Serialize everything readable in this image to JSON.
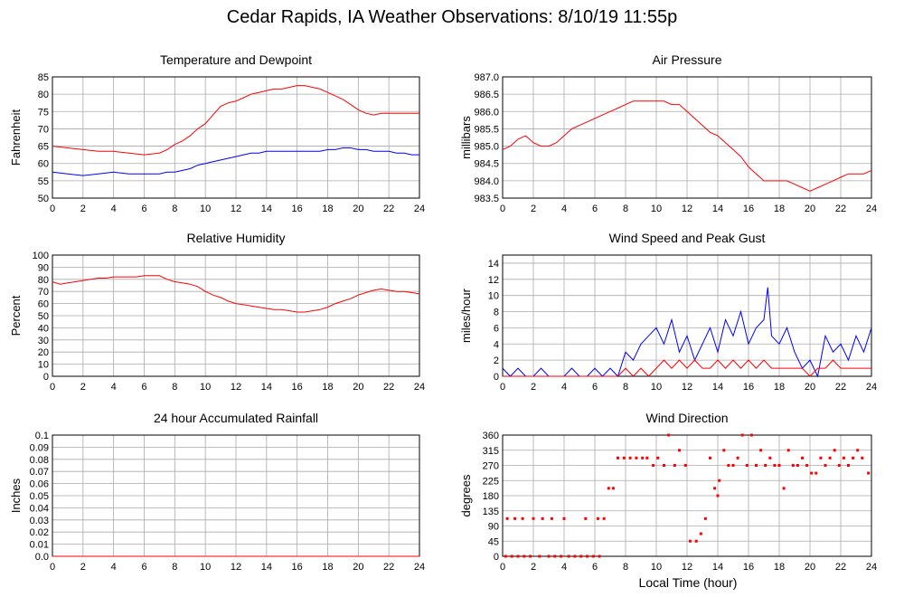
{
  "title": "Cedar Rapids, IA Weather Observations: 8/10/19 11:55p",
  "bottom_xlabel": "Local Time (hour)",
  "colors": {
    "red": "#ff0000",
    "blue": "#0000ff",
    "grid": "#aaaaaa"
  },
  "chart_data": [
    {
      "id": "temp",
      "type": "line",
      "title": "Temperature and Dewpoint",
      "ylabel": "Fahrenheit",
      "ylim": [
        50,
        85
      ],
      "yticks": [
        "50",
        "55",
        "60",
        "65",
        "70",
        "75",
        "80",
        "85"
      ],
      "xlim": [
        0,
        24
      ],
      "xticks": [
        "0",
        "2",
        "4",
        "6",
        "8",
        "10",
        "12",
        "14",
        "16",
        "18",
        "20",
        "22",
        "24"
      ],
      "series": [
        {
          "color": "#ff0000",
          "x": [
            0,
            1,
            2,
            3,
            4,
            5,
            6,
            7,
            7.5,
            8,
            8.5,
            9,
            9.5,
            10,
            10.5,
            11,
            11.5,
            12,
            12.5,
            13,
            13.5,
            14,
            14.5,
            15,
            15.5,
            16,
            16.5,
            17,
            17.5,
            18,
            18.5,
            19,
            19.5,
            20,
            20.5,
            21,
            21.5,
            22,
            22.5,
            23,
            23.5,
            24
          ],
          "y": [
            65,
            64.5,
            64,
            63.5,
            63.5,
            63,
            62.5,
            63,
            64,
            65.5,
            66.5,
            68,
            70,
            71.5,
            74,
            76.5,
            77.5,
            78,
            79,
            80,
            80.5,
            81,
            81.5,
            81.5,
            82,
            82.5,
            82.5,
            82,
            81.5,
            80.5,
            79.5,
            78.5,
            77,
            75.5,
            74.5,
            74,
            74.5,
            74.5,
            74.5,
            74.5,
            74.5,
            74.5
          ]
        },
        {
          "color": "#0000ff",
          "x": [
            0,
            1,
            2,
            3,
            4,
            5,
            6,
            7,
            7.5,
            8,
            8.5,
            9,
            9.5,
            10,
            10.5,
            11,
            11.5,
            12,
            12.5,
            13,
            13.5,
            14,
            14.5,
            15,
            15.5,
            16,
            16.5,
            17,
            17.5,
            18,
            18.5,
            19,
            19.5,
            20,
            20.5,
            21,
            21.5,
            22,
            22.5,
            23,
            23.5,
            24
          ],
          "y": [
            57.5,
            57,
            56.5,
            57,
            57.5,
            57,
            57,
            57,
            57.5,
            57.5,
            58,
            58.5,
            59.5,
            60,
            60.5,
            61,
            61.5,
            62,
            62.5,
            63,
            63,
            63.5,
            63.5,
            63.5,
            63.5,
            63.5,
            63.5,
            63.5,
            63.5,
            64,
            64,
            64.5,
            64.5,
            64,
            64,
            63.5,
            63.5,
            63.5,
            63,
            63,
            62.5,
            62.5
          ]
        }
      ]
    },
    {
      "id": "pressure",
      "type": "line",
      "title": "Air Pressure",
      "ylabel": "millibars",
      "ylim": [
        983.5,
        987.0
      ],
      "yticks": [
        "983.5",
        "984.0",
        "984.5",
        "985.0",
        "985.5",
        "986.0",
        "986.5",
        "987.0"
      ],
      "xlim": [
        0,
        24
      ],
      "xticks": [
        "0",
        "2",
        "4",
        "6",
        "8",
        "10",
        "12",
        "14",
        "16",
        "18",
        "20",
        "22",
        "24"
      ],
      "series": [
        {
          "color": "#ff0000",
          "x": [
            0,
            0.5,
            1,
            1.5,
            2,
            2.5,
            3,
            3.5,
            4,
            4.5,
            5,
            5.5,
            6,
            6.5,
            7,
            7.5,
            8,
            8.5,
            9,
            9.5,
            10,
            10.5,
            11,
            11.5,
            12,
            12.5,
            13,
            13.5,
            14,
            14.5,
            15,
            15.5,
            16,
            16.5,
            17,
            17.5,
            18,
            18.5,
            19,
            19.5,
            20,
            20.5,
            21,
            21.5,
            22,
            22.5,
            23,
            23.5,
            24
          ],
          "y": [
            984.9,
            985.0,
            985.2,
            985.3,
            985.1,
            985.0,
            985.0,
            985.1,
            985.3,
            985.5,
            985.6,
            985.7,
            985.8,
            985.9,
            986.0,
            986.1,
            986.2,
            986.3,
            986.3,
            986.3,
            986.3,
            986.3,
            986.2,
            986.2,
            986.0,
            985.8,
            985.6,
            985.4,
            985.3,
            985.1,
            984.9,
            984.7,
            984.4,
            984.2,
            984.0,
            984.0,
            984.0,
            984.0,
            983.9,
            983.8,
            983.7,
            983.8,
            983.9,
            984.0,
            984.1,
            984.2,
            984.2,
            984.2,
            984.3
          ]
        }
      ]
    },
    {
      "id": "humidity",
      "type": "line",
      "title": "Relative Humidity",
      "ylabel": "Percent",
      "ylim": [
        0,
        100
      ],
      "yticks": [
        "0",
        "10",
        "20",
        "30",
        "40",
        "50",
        "60",
        "70",
        "80",
        "90",
        "100"
      ],
      "xlim": [
        0,
        24
      ],
      "xticks": [
        "0",
        "2",
        "4",
        "6",
        "8",
        "10",
        "12",
        "14",
        "16",
        "18",
        "20",
        "22",
        "24"
      ],
      "series": [
        {
          "color": "#ff0000",
          "x": [
            0,
            0.5,
            1,
            1.5,
            2,
            2.5,
            3,
            3.5,
            4,
            4.5,
            5,
            5.5,
            6,
            6.5,
            7,
            7.5,
            8,
            8.5,
            9,
            9.5,
            10,
            10.5,
            11,
            11.5,
            12,
            12.5,
            13,
            13.5,
            14,
            14.5,
            15,
            15.5,
            16,
            16.5,
            17,
            17.5,
            18,
            18.5,
            19,
            19.5,
            20,
            20.5,
            21,
            21.5,
            22,
            22.5,
            23,
            23.5,
            24
          ],
          "y": [
            78,
            76,
            77,
            78,
            79,
            80,
            81,
            81,
            82,
            82,
            82,
            82,
            83,
            83,
            83,
            80,
            78,
            77,
            76,
            74,
            70,
            67,
            65,
            62,
            60,
            59,
            58,
            57,
            56,
            55,
            55,
            54,
            53,
            53,
            54,
            55,
            57,
            60,
            62,
            64,
            67,
            69,
            71,
            72,
            71,
            70,
            70,
            69,
            68
          ]
        }
      ]
    },
    {
      "id": "wind",
      "type": "line",
      "title": "Wind Speed and Peak Gust",
      "ylabel": "miles/hour",
      "ylim": [
        0,
        15
      ],
      "yticks": [
        "0",
        "2",
        "4",
        "6",
        "8",
        "10",
        "12",
        "14"
      ],
      "xlim": [
        0,
        24
      ],
      "xticks": [
        "0",
        "2",
        "4",
        "6",
        "8",
        "10",
        "12",
        "14",
        "16",
        "18",
        "20",
        "22",
        "24"
      ],
      "series": [
        {
          "color": "#0000ff",
          "x": [
            0,
            0.5,
            1,
            1.5,
            2,
            2.5,
            3,
            3.5,
            4,
            4.5,
            5,
            5.5,
            6,
            6.5,
            7,
            7.5,
            8,
            8.5,
            9,
            9.5,
            10,
            10.5,
            11,
            11.5,
            12,
            12.5,
            13,
            13.5,
            14,
            14.5,
            15,
            15.5,
            16,
            16.5,
            17,
            17.25,
            17.5,
            18,
            18.5,
            19,
            19.5,
            20,
            20.5,
            21,
            21.5,
            22,
            22.5,
            23,
            23.5,
            24
          ],
          "y": [
            1,
            0,
            1,
            0,
            0,
            1,
            0,
            0,
            0,
            1,
            0,
            0,
            1,
            0,
            1,
            0,
            3,
            2,
            4,
            5,
            6,
            4,
            7,
            3,
            5,
            2,
            4,
            6,
            3,
            7,
            5,
            8,
            4,
            6,
            7,
            11,
            5,
            4,
            6,
            3,
            1,
            2,
            0,
            5,
            3,
            4,
            2,
            5,
            3,
            6
          ]
        },
        {
          "color": "#ff0000",
          "x": [
            0,
            1,
            2,
            3,
            4,
            5,
            6,
            7,
            7.5,
            8,
            8.5,
            9,
            9.5,
            10,
            10.5,
            11,
            11.5,
            12,
            12.5,
            13,
            13.5,
            14,
            14.5,
            15,
            15.5,
            16,
            16.5,
            17,
            17.5,
            18,
            18.5,
            19,
            19.5,
            20,
            20.5,
            21,
            21.5,
            22,
            22.5,
            23,
            23.5,
            24
          ],
          "y": [
            0,
            0,
            0,
            0,
            0,
            0,
            0,
            0,
            0,
            1,
            0,
            1,
            0,
            1,
            2,
            1,
            2,
            1,
            2,
            1,
            1,
            2,
            1,
            2,
            1,
            2,
            1,
            2,
            1,
            1,
            1,
            1,
            1,
            0,
            1,
            1,
            2,
            1,
            1,
            1,
            1,
            1
          ]
        }
      ]
    },
    {
      "id": "rain",
      "type": "line",
      "title": "24 hour Accumulated Rainfall",
      "ylabel": "Inches",
      "ylim": [
        0,
        0.1
      ],
      "yticks": [
        "0.0",
        "0.01",
        "0.02",
        "0.03",
        "0.04",
        "0.05",
        "0.06",
        "0.07",
        "0.08",
        "0.09",
        "0.1"
      ],
      "xlim": [
        0,
        24
      ],
      "xticks": [
        "0",
        "2",
        "4",
        "6",
        "8",
        "10",
        "12",
        "14",
        "16",
        "18",
        "20",
        "22",
        "24"
      ],
      "series": [
        {
          "color": "#ff0000",
          "x": [
            0,
            24
          ],
          "y": [
            0,
            0
          ]
        }
      ]
    },
    {
      "id": "direction",
      "type": "scatter",
      "title": "Wind Direction",
      "ylabel": "degrees",
      "ylim": [
        0,
        360
      ],
      "yticks": [
        "0",
        "45",
        "90",
        "135",
        "180",
        "225",
        "270",
        "315",
        "360"
      ],
      "xlim": [
        0,
        24
      ],
      "xticks": [
        "0",
        "2",
        "4",
        "6",
        "8",
        "10",
        "12",
        "14",
        "16",
        "18",
        "20",
        "22",
        "24"
      ],
      "series": [
        {
          "color": "#ff0000",
          "x": [
            0.2,
            0.6,
            1.0,
            1.4,
            1.8,
            2.4,
            3.0,
            3.4,
            3.8,
            4.3,
            4.7,
            5.1,
            5.5,
            5.9,
            6.3,
            0.3,
            0.8,
            1.3,
            2.0,
            2.6,
            3.2,
            4.0,
            5.4,
            6.2,
            6.6,
            6.9,
            7.2,
            7.5,
            7.9,
            8.3,
            8.7,
            9.1,
            9.4,
            9.8,
            10.1,
            10.5,
            10.8,
            11.2,
            11.5,
            11.9,
            12.2,
            12.6,
            12.9,
            13.2,
            13.5,
            13.8,
            14.0,
            14.1,
            14.4,
            14.7,
            15.0,
            15.3,
            15.6,
            15.9,
            16.2,
            16.5,
            16.8,
            17.1,
            17.4,
            17.7,
            18.0,
            18.3,
            18.6,
            18.9,
            19.2,
            19.5,
            19.8,
            20.1,
            20.4,
            20.7,
            21.0,
            21.3,
            21.6,
            21.9,
            22.2,
            22.5,
            22.8,
            23.1,
            23.4,
            23.8
          ],
          "y": [
            0,
            0,
            0,
            0,
            0,
            0,
            0,
            0,
            0,
            0,
            0,
            0,
            0,
            0,
            0,
            112,
            112,
            112,
            112,
            112,
            112,
            112,
            112,
            112,
            112,
            202,
            202,
            292,
            292,
            292,
            292,
            292,
            292,
            270,
            292,
            270,
            360,
            270,
            315,
            270,
            45,
            45,
            67,
            112,
            292,
            202,
            180,
            225,
            315,
            270,
            270,
            292,
            360,
            270,
            360,
            270,
            315,
            270,
            292,
            270,
            270,
            202,
            315,
            270,
            270,
            292,
            270,
            247,
            247,
            292,
            270,
            292,
            315,
            270,
            292,
            270,
            292,
            315,
            292,
            247
          ]
        }
      ]
    }
  ]
}
